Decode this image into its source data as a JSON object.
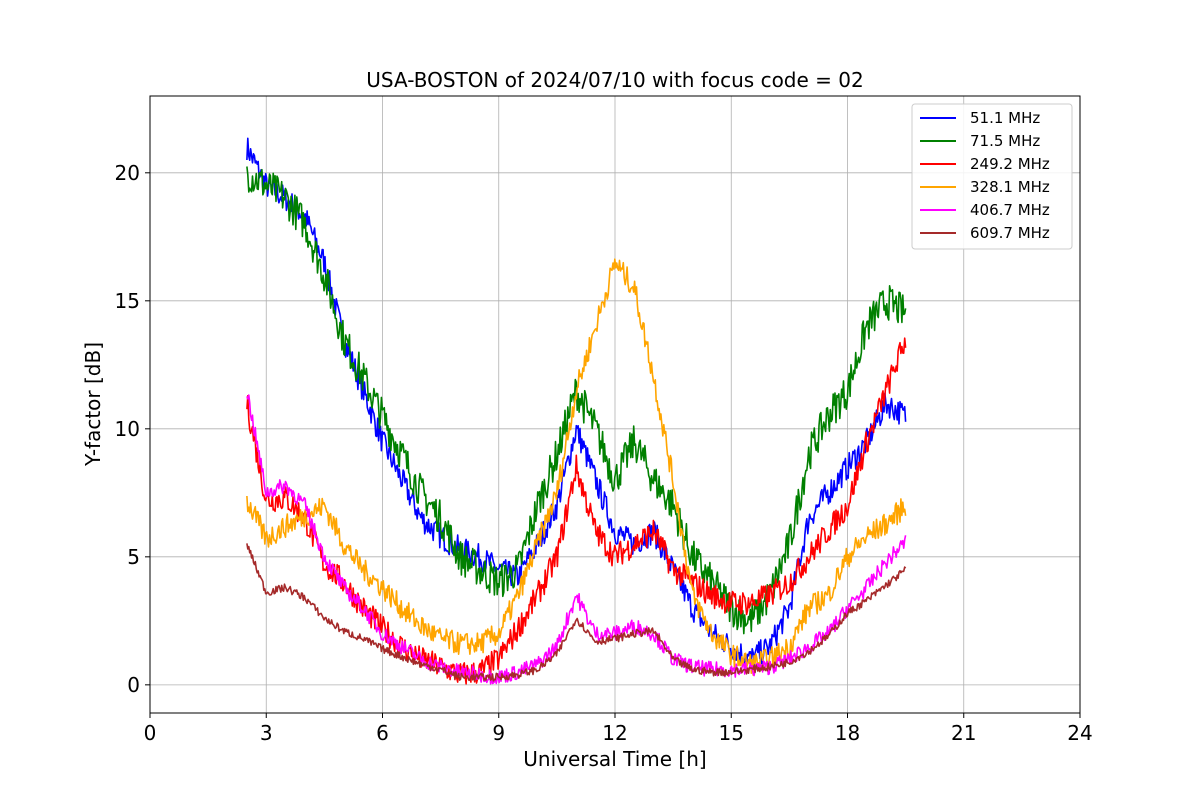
{
  "chart_data": {
    "type": "line",
    "title": "USA-BOSTON of 2024/07/10 with focus code = 02",
    "xlabel": "Universal Time [h]",
    "ylabel": "Y-factor [dB]",
    "xlim": [
      0,
      24
    ],
    "ylim": [
      -1.1,
      23
    ],
    "xticks": [
      0,
      3,
      6,
      9,
      12,
      15,
      18,
      21,
      24
    ],
    "yticks": [
      0,
      5,
      10,
      15,
      20
    ],
    "xtick_labels": [
      "0",
      "3",
      "6",
      "9",
      "12",
      "15",
      "18",
      "21",
      "24"
    ],
    "ytick_labels": [
      "0",
      "5",
      "10",
      "15",
      "20"
    ],
    "grid": true,
    "legend_position": "top-right",
    "x": [
      2.5,
      3,
      3.5,
      4,
      4.5,
      5,
      5.5,
      6,
      6.5,
      7,
      7.5,
      8,
      8.5,
      9,
      9.5,
      10,
      10.5,
      11,
      11.5,
      12,
      12.5,
      13,
      13.5,
      14,
      14.5,
      15,
      15.5,
      16,
      16.5,
      17,
      17.5,
      18,
      18.5,
      19,
      19.5
    ],
    "series": [
      {
        "name": " 51.1 MHz",
        "color": "#0000ff",
        "noise": 0.5,
        "values": [
          21.0,
          19.5,
          19.0,
          18.3,
          16.5,
          13.5,
          11.5,
          9.5,
          8.0,
          6.5,
          5.8,
          5.3,
          5.0,
          4.5,
          4.2,
          5.5,
          7.0,
          10.0,
          8.0,
          6.0,
          5.5,
          6.0,
          4.5,
          3.0,
          2.0,
          1.5,
          1.0,
          1.5,
          3.0,
          6.5,
          7.5,
          8.5,
          9.5,
          11.0,
          10.5
        ]
      },
      {
        "name": " 71.5 MHz",
        "color": "#008000",
        "noise": 0.7,
        "values": [
          20.0,
          19.5,
          19.0,
          18.0,
          16.0,
          13.5,
          12.0,
          10.5,
          9.0,
          7.5,
          6.5,
          5.0,
          4.5,
          4.0,
          4.5,
          7.0,
          9.0,
          11.5,
          10.0,
          8.0,
          9.5,
          8.0,
          7.0,
          5.0,
          4.0,
          3.0,
          2.5,
          3.5,
          5.5,
          9.0,
          10.5,
          11.5,
          14.0,
          15.0,
          14.5
        ]
      },
      {
        "name": "249.2 MHz",
        "color": "#ff0000",
        "noise": 0.5,
        "values": [
          11.0,
          7.2,
          7.3,
          6.5,
          4.7,
          4.0,
          3.0,
          2.2,
          1.5,
          1.0,
          0.7,
          0.4,
          0.5,
          1.0,
          2.2,
          3.5,
          5.0,
          8.5,
          6.0,
          5.0,
          5.5,
          6.0,
          4.5,
          4.0,
          3.5,
          3.2,
          3.2,
          3.5,
          4.0,
          5.0,
          6.0,
          7.0,
          9.5,
          11.5,
          13.5
        ]
      },
      {
        "name": "328.1 MHz",
        "color": "#ffa500",
        "noise": 0.45,
        "values": [
          7.2,
          5.7,
          6.2,
          6.6,
          7.0,
          5.5,
          4.5,
          3.8,
          3.0,
          2.3,
          1.8,
          1.6,
          1.6,
          2.0,
          3.5,
          5.5,
          7.5,
          11.5,
          14.0,
          16.5,
          15.5,
          12.0,
          8.0,
          3.5,
          2.0,
          1.2,
          0.8,
          1.0,
          1.5,
          3.0,
          3.5,
          5.0,
          5.8,
          6.3,
          7.0
        ]
      },
      {
        "name": "406.7 MHz",
        "color": "#ff00ff",
        "noise": 0.3,
        "values": [
          11.5,
          7.5,
          7.8,
          7.0,
          5.0,
          3.8,
          3.0,
          2.0,
          1.5,
          1.0,
          0.7,
          0.5,
          0.4,
          0.3,
          0.5,
          0.8,
          1.5,
          3.5,
          2.0,
          2.0,
          2.3,
          2.0,
          1.0,
          0.7,
          0.6,
          0.6,
          0.6,
          0.7,
          1.0,
          1.5,
          2.0,
          3.0,
          3.8,
          4.8,
          5.6
        ]
      },
      {
        "name": "609.7 MHz",
        "color": "#a52a2a",
        "noise": 0.15,
        "values": [
          5.5,
          3.6,
          3.8,
          3.4,
          2.6,
          2.1,
          1.8,
          1.4,
          1.1,
          0.8,
          0.6,
          0.3,
          0.3,
          0.3,
          0.4,
          0.6,
          1.2,
          2.6,
          1.7,
          1.8,
          2.0,
          2.1,
          1.0,
          0.6,
          0.5,
          0.5,
          0.6,
          0.7,
          0.9,
          1.3,
          1.9,
          2.8,
          3.3,
          3.9,
          4.5
        ]
      }
    ]
  }
}
